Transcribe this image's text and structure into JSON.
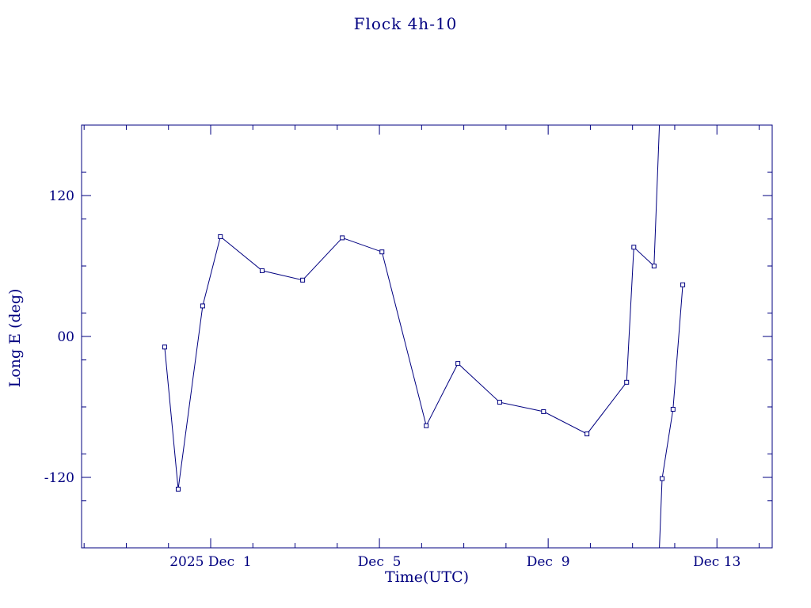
{
  "page": {
    "background": "#ffffff",
    "accent_color": "#000080"
  },
  "chart_data": {
    "type": "line",
    "title": "Flock 4h-10",
    "xlabel": "Time(UTC)",
    "ylabel": "Long E (deg)",
    "legend": "none",
    "grid": false,
    "line_color": "#000080",
    "marker": "open-square",
    "wrap_at_deg": 180,
    "x_axis": {
      "unit": "days since 2025 Dec 1 00:00 UTC",
      "range_days": [
        -3.06,
        13.31
      ],
      "minor_tick_interval_days": 1,
      "major_ticks": [
        {
          "t": 0,
          "label": "2025 Dec  1"
        },
        {
          "t": 4,
          "label": "Dec  5"
        },
        {
          "t": 8,
          "label": "Dec  9"
        },
        {
          "t": 12,
          "label": "Dec 13"
        }
      ]
    },
    "y_axis": {
      "unit": "deg",
      "range_deg": [
        -180,
        180
      ],
      "minor_tick_interval_deg": 40,
      "major_ticks": [
        {
          "v": 120,
          "label": "120"
        },
        {
          "v": 0,
          "label": "00"
        },
        {
          "v": -120,
          "label": "-120"
        }
      ]
    },
    "series": [
      {
        "name": "Flock 4h-10 longitude",
        "x_days": [
          -1.09,
          -0.77,
          -0.19,
          0.23,
          1.22,
          2.18,
          3.12,
          4.06,
          5.11,
          5.86,
          6.85,
          7.89,
          8.92,
          9.86,
          10.03,
          10.51,
          10.7,
          10.96,
          11.19
        ],
        "y_deg": [
          -9,
          -130,
          26,
          85,
          56,
          48,
          84,
          72,
          -76,
          -23,
          -56,
          -64,
          -83,
          -39,
          76,
          60,
          -121,
          -62,
          44
        ]
      }
    ]
  }
}
